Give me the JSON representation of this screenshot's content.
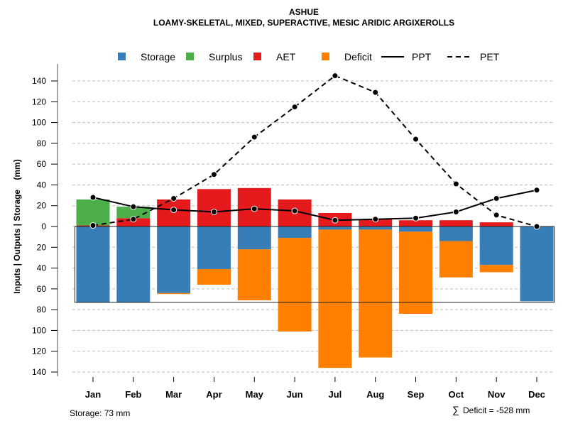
{
  "chart_data": {
    "type": "bar",
    "title": "ASHUE",
    "subtitle": "LOAMY-SKELETAL, MIXED, SUPERACTIVE, MESIC ARIDIC ARGIXEROLLS",
    "ylabel": "Inputs | Outputs | Storage    (mm)",
    "xlabel": "",
    "ylim": [
      -140,
      150
    ],
    "yticks": [
      140,
      120,
      100,
      80,
      60,
      40,
      20,
      0,
      -20,
      -40,
      -60,
      -80,
      -100,
      -120,
      -140
    ],
    "ytick_labels": [
      "140",
      "120",
      "100",
      "80",
      "60",
      "40",
      "20",
      "0",
      "20",
      "40",
      "60",
      "80",
      "100",
      "120",
      "140"
    ],
    "grid": true,
    "legend_position": "top",
    "colors": {
      "Storage": "#377EB8",
      "Surplus": "#4DAF4A",
      "AET": "#E41A1C",
      "Deficit": "#FF7F00",
      "PPT": "#000000",
      "PET": "#000000"
    },
    "legend": [
      {
        "label": "Storage",
        "kind": "box",
        "color": "#377EB8"
      },
      {
        "label": "Surplus",
        "kind": "box",
        "color": "#4DAF4A"
      },
      {
        "label": "AET",
        "kind": "box",
        "color": "#E41A1C"
      },
      {
        "label": "Deficit",
        "kind": "box",
        "color": "#FF7F00"
      },
      {
        "label": "PPT",
        "kind": "solid"
      },
      {
        "label": "PET",
        "kind": "dashed"
      }
    ],
    "categories": [
      "Jan",
      "Feb",
      "Mar",
      "Apr",
      "May",
      "Jun",
      "Jul",
      "Aug",
      "Sep",
      "Oct",
      "Nov",
      "Dec"
    ],
    "series": [
      {
        "name": "AET",
        "values": [
          1,
          8,
          26,
          36,
          37,
          26,
          13,
          7,
          6,
          6,
          4,
          0
        ]
      },
      {
        "name": "Surplus",
        "values": [
          25,
          11,
          0,
          0,
          0,
          0,
          0,
          0,
          0,
          0,
          0,
          0
        ]
      },
      {
        "name": "Storage",
        "values": [
          -73,
          -73,
          -64,
          -41,
          -22,
          -11,
          -3,
          -3,
          -5,
          -14,
          -37,
          -72
        ]
      },
      {
        "name": "Deficit",
        "values": [
          0,
          0,
          -1,
          -15,
          -49,
          -90,
          -133,
          -123,
          -79,
          -35,
          -7,
          0
        ]
      },
      {
        "name": "PPT",
        "values": [
          28,
          19,
          16,
          14,
          17,
          15,
          6,
          7,
          8,
          14,
          27,
          35
        ]
      },
      {
        "name": "PET",
        "values": [
          1,
          7,
          27,
          50,
          86,
          115,
          145,
          129,
          84,
          41,
          11,
          0
        ]
      }
    ],
    "storage_capacity": 73,
    "annotations": {
      "storage": "Storage: 73 mm",
      "deficit_sum": "Deficit = -528 mm",
      "deficit_symbol": "∑"
    }
  }
}
